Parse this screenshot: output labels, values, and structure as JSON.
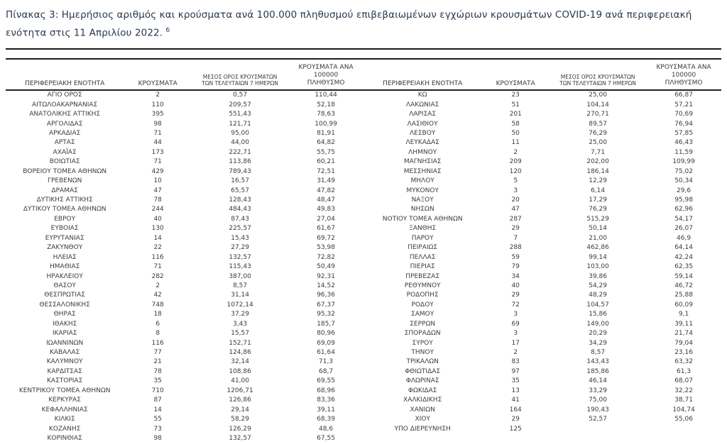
{
  "caption": {
    "text": "Πίνακας 3:  Ημερήσιος αριθμός και κρούσματα ανά 100.000 πληθυσμού επιβεβαιωμένων εγχώριων κρουσμάτων COVID-19 ανά περιφερειακή ενότητα στις 11 Απριλίου 2022. ",
    "footnote_ref": "6"
  },
  "table_headers": {
    "region": "ΠΕΡΙΦΕΡΕΙΑΚΗ ΕΝΟΤΗΤΑ",
    "cases": "ΚΡΟΥΣΜΑΤΑ",
    "avg7_line1": "ΜΕΣΟΣ ΟΡΟΣ ΚΡΟΥΣΜΑΤΩΝ",
    "avg7_line2": "ΤΩΝ ΤΕΛΕΥΤΑΙΩΝ 7 ΗΜΕΡΩΝ",
    "per100k_line1": "ΚΡΟΥΣΜΑΤΑ ΑΝΑ 100000",
    "per100k_line2": "ΠΛΗΘΥΣΜΟ"
  },
  "colors": {
    "caption_text": "#28394b",
    "body_text": "#3c3c3c",
    "rule": "#1c1c1c",
    "bottom_rule": "#8a8a8a"
  },
  "tables": {
    "left": {
      "rows": [
        [
          "ΑΓΙΟ ΟΡΟΣ",
          "2",
          "0,57",
          "110,44"
        ],
        [
          "ΑΙΤΩΛΟΑΚΑΡΝΑΝΙΑΣ",
          "110",
          "209,57",
          "52,18"
        ],
        [
          "ΑΝΑΤΟΛΙΚΗΣ ΑΤΤΙΚΗΣ",
          "395",
          "551,43",
          "78,63"
        ],
        [
          "ΑΡΓΟΛΙΔΑΣ",
          "98",
          "121,71",
          "100,99"
        ],
        [
          "ΑΡΚΑΔΙΑΣ",
          "71",
          "95,00",
          "81,91"
        ],
        [
          "ΑΡΤΑΣ",
          "44",
          "44,00",
          "64,82"
        ],
        [
          "ΑΧΑΪΑΣ",
          "173",
          "222,71",
          "55,75"
        ],
        [
          "ΒΟΙΩΤΙΑΣ",
          "71",
          "113,86",
          "60,21"
        ],
        [
          "ΒΟΡΕΙΟΥ ΤΟΜΕΑ ΑΘΗΝΩΝ",
          "429",
          "789,43",
          "72,51"
        ],
        [
          "ΓΡΕΒΕΝΩΝ",
          "10",
          "16,57",
          "31,49"
        ],
        [
          "ΔΡΑΜΑΣ",
          "47",
          "65,57",
          "47,82"
        ],
        [
          "ΔΥΤΙΚΗΣ ΑΤΤΙΚΗΣ",
          "78",
          "128,43",
          "48,47"
        ],
        [
          "ΔΥΤΙΚΟΥ ΤΟΜΕΑ ΑΘΗΝΩΝ",
          "244",
          "484,43",
          "49,83"
        ],
        [
          "ΕΒΡΟΥ",
          "40",
          "87,43",
          "27,04"
        ],
        [
          "ΕΥΒΟΙΑΣ",
          "130",
          "225,57",
          "61,67"
        ],
        [
          "ΕΥΡΥΤΑΝΙΑΣ",
          "14",
          "15,43",
          "69,72"
        ],
        [
          "ΖΑΚΥΝΘΟΥ",
          "22",
          "27,29",
          "53,98"
        ],
        [
          "ΗΛΕΙΑΣ",
          "116",
          "132,57",
          "72,82"
        ],
        [
          "ΗΜΑΘΙΑΣ",
          "71",
          "115,43",
          "50,49"
        ],
        [
          "ΗΡΑΚΛΕΙΟΥ",
          "282",
          "387,00",
          "92,31"
        ],
        [
          "ΘΑΣΟΥ",
          "2",
          "8,57",
          "14,52"
        ],
        [
          "ΘΕΣΠΡΩΤΙΑΣ",
          "42",
          "31,14",
          "96,36"
        ],
        [
          "ΘΕΣΣΑΛΟΝΙΚΗΣ",
          "748",
          "1072,14",
          "67,37"
        ],
        [
          "ΘΗΡΑΣ",
          "18",
          "37,29",
          "95,32"
        ],
        [
          "ΙΘΑΚΗΣ",
          "6",
          "3,43",
          "185,7"
        ],
        [
          "ΙΚΑΡΙΑΣ",
          "8",
          "15,57",
          "80,96"
        ],
        [
          "ΙΩΑΝΝΙΝΩΝ",
          "116",
          "152,71",
          "69,09"
        ],
        [
          "ΚΑΒΑΛΑΣ",
          "77",
          "124,86",
          "61,64"
        ],
        [
          "ΚΑΛΥΜΝΟΥ",
          "21",
          "32,14",
          "71,3"
        ],
        [
          "ΚΑΡΔΙΤΣΑΣ",
          "78",
          "108,86",
          "68,7"
        ],
        [
          "ΚΑΣΤΟΡΙΑΣ",
          "35",
          "41,00",
          "69,55"
        ],
        [
          "ΚΕΝΤΡΙΚΟΥ ΤΟΜΕΑ ΑΘΗΝΩΝ",
          "710",
          "1206,71",
          "68,96"
        ],
        [
          "ΚΕΡΚΥΡΑΣ",
          "87",
          "126,86",
          "83,36"
        ],
        [
          "ΚΕΦΑΛΛΗΝΙΑΣ",
          "14",
          "29,14",
          "39,11"
        ],
        [
          "ΚΙΛΚΙΣ",
          "55",
          "58,29",
          "68,39"
        ],
        [
          "ΚΟΖΑΝΗΣ",
          "73",
          "126,29",
          "48,6"
        ],
        [
          "ΚΟΡΙΝΘΙΑΣ",
          "98",
          "132,57",
          "67,55"
        ]
      ]
    },
    "right": {
      "rows": [
        [
          "ΚΩ",
          "23",
          "25,00",
          "66,87"
        ],
        [
          "ΛΑΚΩΝΙΑΣ",
          "51",
          "104,14",
          "57,21"
        ],
        [
          "ΛΑΡΙΣΑΣ",
          "201",
          "270,71",
          "70,69"
        ],
        [
          "ΛΑΣΙΘΙΟΥ",
          "58",
          "89,57",
          "76,94"
        ],
        [
          "ΛΕΣΒΟΥ",
          "50",
          "76,29",
          "57,85"
        ],
        [
          "ΛΕΥΚΑΔΑΣ",
          "11",
          "25,00",
          "46,43"
        ],
        [
          "ΛΗΜΝΟΥ",
          "2",
          "7,71",
          "11,59"
        ],
        [
          "ΜΑΓΝΗΣΙΑΣ",
          "209",
          "202,00",
          "109,99"
        ],
        [
          "ΜΕΣΣΗΝΙΑΣ",
          "120",
          "186,14",
          "75,02"
        ],
        [
          "ΜΗΛΟΥ",
          "5",
          "12,29",
          "50,34"
        ],
        [
          "ΜΥΚΟΝΟΥ",
          "3",
          "6,14",
          "29,6"
        ],
        [
          "ΝΑΞΟΥ",
          "20",
          "17,29",
          "95,98"
        ],
        [
          "ΝΗΣΩΝ",
          "47",
          "76,29",
          "62,96"
        ],
        [
          "ΝΟΤΙΟΥ ΤΟΜΕΑ ΑΘΗΝΩΝ",
          "287",
          "515,29",
          "54,17"
        ],
        [
          "ΞΑΝΘΗΣ",
          "29",
          "50,14",
          "26,07"
        ],
        [
          "ΠΑΡΟΥ",
          "7",
          "21,00",
          "46,9"
        ],
        [
          "ΠΕΙΡΑΙΩΣ",
          "288",
          "462,86",
          "64,14"
        ],
        [
          "ΠΕΛΛΑΣ",
          "59",
          "99,14",
          "42,24"
        ],
        [
          "ΠΙΕΡΙΑΣ",
          "79",
          "103,00",
          "62,35"
        ],
        [
          "ΠΡΕΒΕΖΑΣ",
          "34",
          "39,86",
          "59,14"
        ],
        [
          "ΡΕΘΥΜΝΟΥ",
          "40",
          "54,29",
          "46,72"
        ],
        [
          "ΡΟΔΟΠΗΣ",
          "29",
          "48,29",
          "25,88"
        ],
        [
          "ΡΟΔΟΥ",
          "72",
          "104,57",
          "60,09"
        ],
        [
          "ΣΑΜΟΥ",
          "3",
          "15,86",
          "9,1"
        ],
        [
          "ΣΕΡΡΩΝ",
          "69",
          "149,00",
          "39,11"
        ],
        [
          "ΣΠΟΡΑΔΩΝ",
          "3",
          "20,29",
          "21,74"
        ],
        [
          "ΣΥΡΟΥ",
          "17",
          "34,29",
          "79,04"
        ],
        [
          "ΤΗΝΟΥ",
          "2",
          "8,57",
          "23,16"
        ],
        [
          "ΤΡΙΚΑΛΩΝ",
          "83",
          "143,43",
          "63,32"
        ],
        [
          "ΦΘΙΩΤΙΔΑΣ",
          "97",
          "185,86",
          "61,3"
        ],
        [
          "ΦΛΩΡΙΝΑΣ",
          "35",
          "46,14",
          "68,07"
        ],
        [
          "ΦΩΚΙΔΑΣ",
          "13",
          "33,29",
          "32,22"
        ],
        [
          "ΧΑΛΚΙΔΙΚΗΣ",
          "41",
          "75,00",
          "38,71"
        ],
        [
          "ΧΑΝΙΩΝ",
          "164",
          "190,43",
          "104,74"
        ],
        [
          "ΧΙΟΥ",
          "29",
          "52,57",
          "55,06"
        ],
        [
          "ΥΠΟ ΔΙΕΡΕΥΝΗΣΗ",
          "125",
          "",
          ""
        ]
      ]
    }
  }
}
